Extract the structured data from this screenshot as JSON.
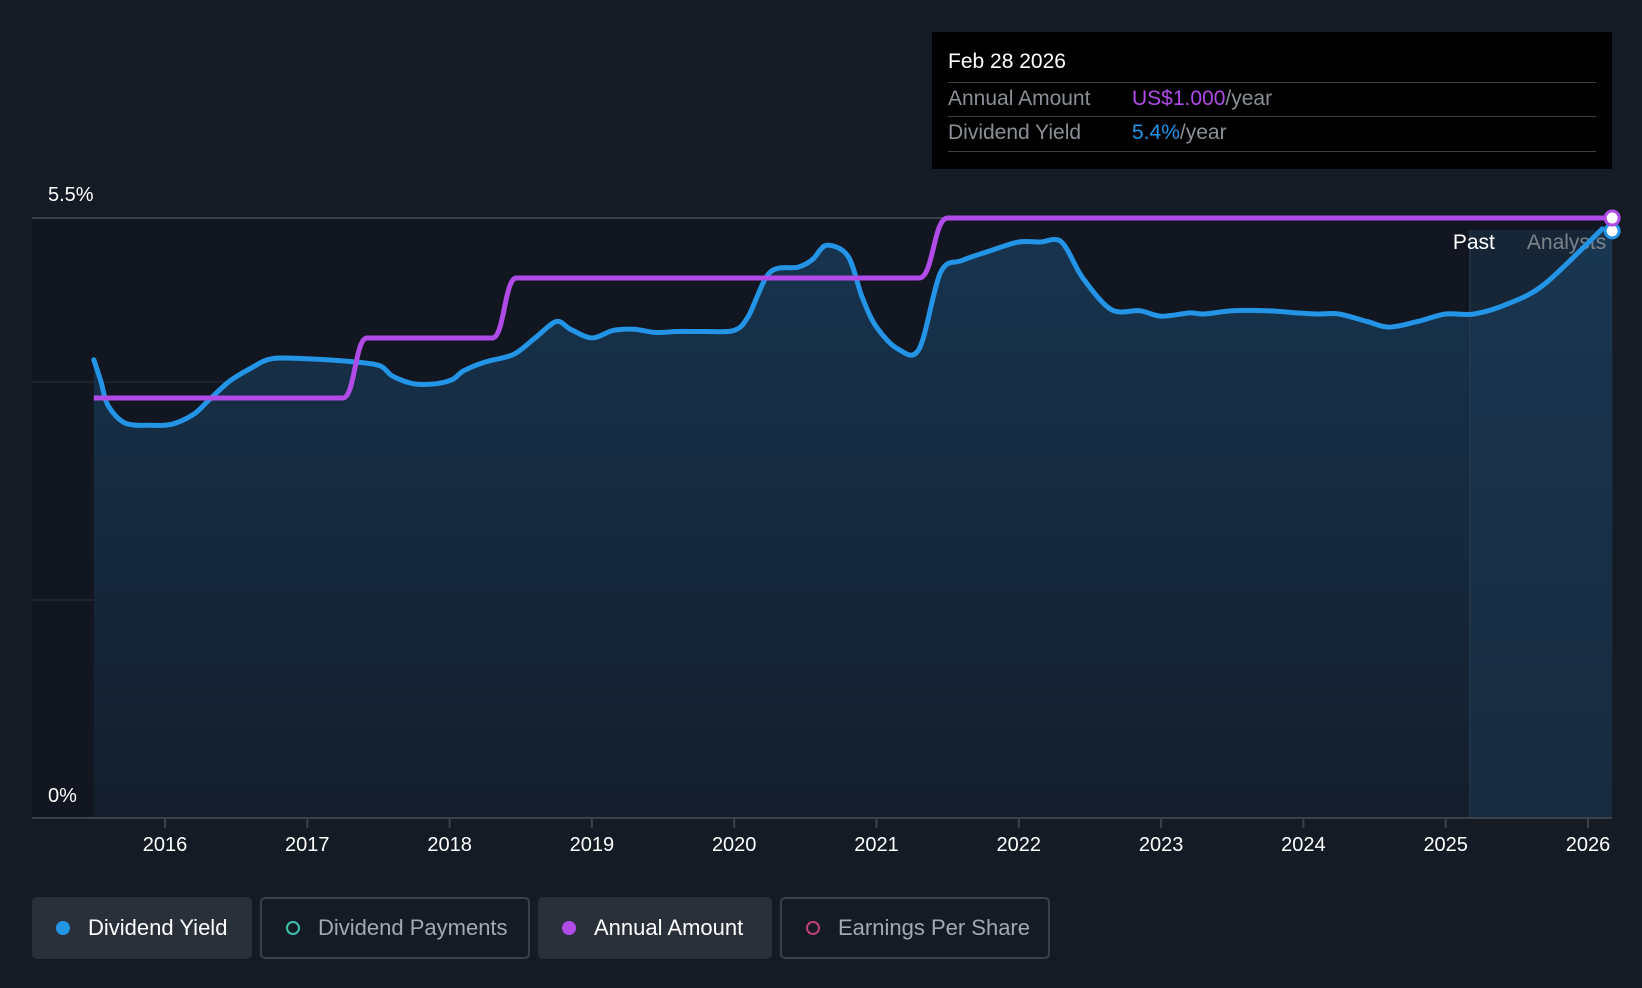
{
  "chart_data": {
    "type": "line",
    "x_range": [
      2015.5,
      2026.17
    ],
    "ylim": [
      0,
      5.5
    ],
    "y_tick_labels": [
      "5.5%",
      "0%"
    ],
    "x_tick_labels": [
      "2016",
      "2017",
      "2018",
      "2019",
      "2020",
      "2021",
      "2022",
      "2023",
      "2024",
      "2025",
      "2026"
    ],
    "x_tick_values": [
      2016,
      2017,
      2018,
      2019,
      2020,
      2021,
      2022,
      2023,
      2024,
      2025,
      2026
    ],
    "region_labels": {
      "past": "Past",
      "future": "Analysts"
    },
    "forecast_start": 2025.17,
    "series": [
      {
        "name": "Dividend Yield",
        "color": "#2394e6",
        "x": [
          2015.5,
          2015.55,
          2015.6,
          2015.72,
          2015.9,
          2016.05,
          2016.2,
          2016.3,
          2016.45,
          2016.6,
          2016.75,
          2017.0,
          2017.25,
          2017.5,
          2017.6,
          2017.75,
          2017.9,
          2018.02,
          2018.1,
          2018.25,
          2018.45,
          2018.6,
          2018.75,
          2018.85,
          2019.0,
          2019.15,
          2019.3,
          2019.45,
          2019.6,
          2019.8,
          2020.0,
          2020.1,
          2020.25,
          2020.45,
          2020.55,
          2020.65,
          2020.8,
          2020.9,
          2021.0,
          2021.15,
          2021.3,
          2021.45,
          2021.6,
          2021.8,
          2022.0,
          2022.15,
          2022.3,
          2022.45,
          2022.65,
          2022.85,
          2023.0,
          2023.2,
          2023.3,
          2023.5,
          2023.75,
          2023.95,
          2024.1,
          2024.25,
          2024.45,
          2024.6,
          2024.8,
          2025.0,
          2025.2,
          2025.45,
          2025.7,
          2026.1
        ],
        "values": [
          4.2,
          4.0,
          3.78,
          3.62,
          3.6,
          3.61,
          3.7,
          3.82,
          4.0,
          4.12,
          4.21,
          4.21,
          4.19,
          4.15,
          4.05,
          3.98,
          3.98,
          4.02,
          4.1,
          4.18,
          4.25,
          4.4,
          4.55,
          4.48,
          4.4,
          4.47,
          4.48,
          4.45,
          4.46,
          4.46,
          4.47,
          4.6,
          5.0,
          5.05,
          5.12,
          5.25,
          5.15,
          4.77,
          4.5,
          4.3,
          4.3,
          5.0,
          5.11,
          5.2,
          5.28,
          5.28,
          5.28,
          4.95,
          4.66,
          4.65,
          4.6,
          4.63,
          4.62,
          4.65,
          4.65,
          4.63,
          4.62,
          4.62,
          4.55,
          4.5,
          4.55,
          4.62,
          4.62,
          4.72,
          4.9,
          5.4
        ]
      },
      {
        "name": "Annual Amount",
        "color": "#b04be8",
        "x": [
          2015.5,
          2017.25,
          2017.42,
          2018.3,
          2018.47,
          2021.3,
          2021.5,
          2026.17
        ],
        "values": [
          3.85,
          3.85,
          4.4,
          4.4,
          4.95,
          4.95,
          5.5,
          5.5
        ]
      }
    ]
  },
  "tooltip": {
    "date": "Feb 28 2026",
    "annual_amount_label": "Annual Amount",
    "annual_amount_value": "US$1.000",
    "annual_amount_unit": "/year",
    "annual_amount_color": "#b04be8",
    "yield_label": "Dividend Yield",
    "yield_value": "5.4%",
    "yield_unit": "/year",
    "yield_color": "#2394e6"
  },
  "legend": [
    {
      "label": "Dividend Yield",
      "color": "#2394e6",
      "active": true
    },
    {
      "label": "Dividend Payments",
      "color": "#3fbfae",
      "active": false
    },
    {
      "label": "Annual Amount",
      "color": "#b04be8",
      "active": true
    },
    {
      "label": "Earnings Per Share",
      "color": "#c0407a",
      "active": false
    }
  ]
}
